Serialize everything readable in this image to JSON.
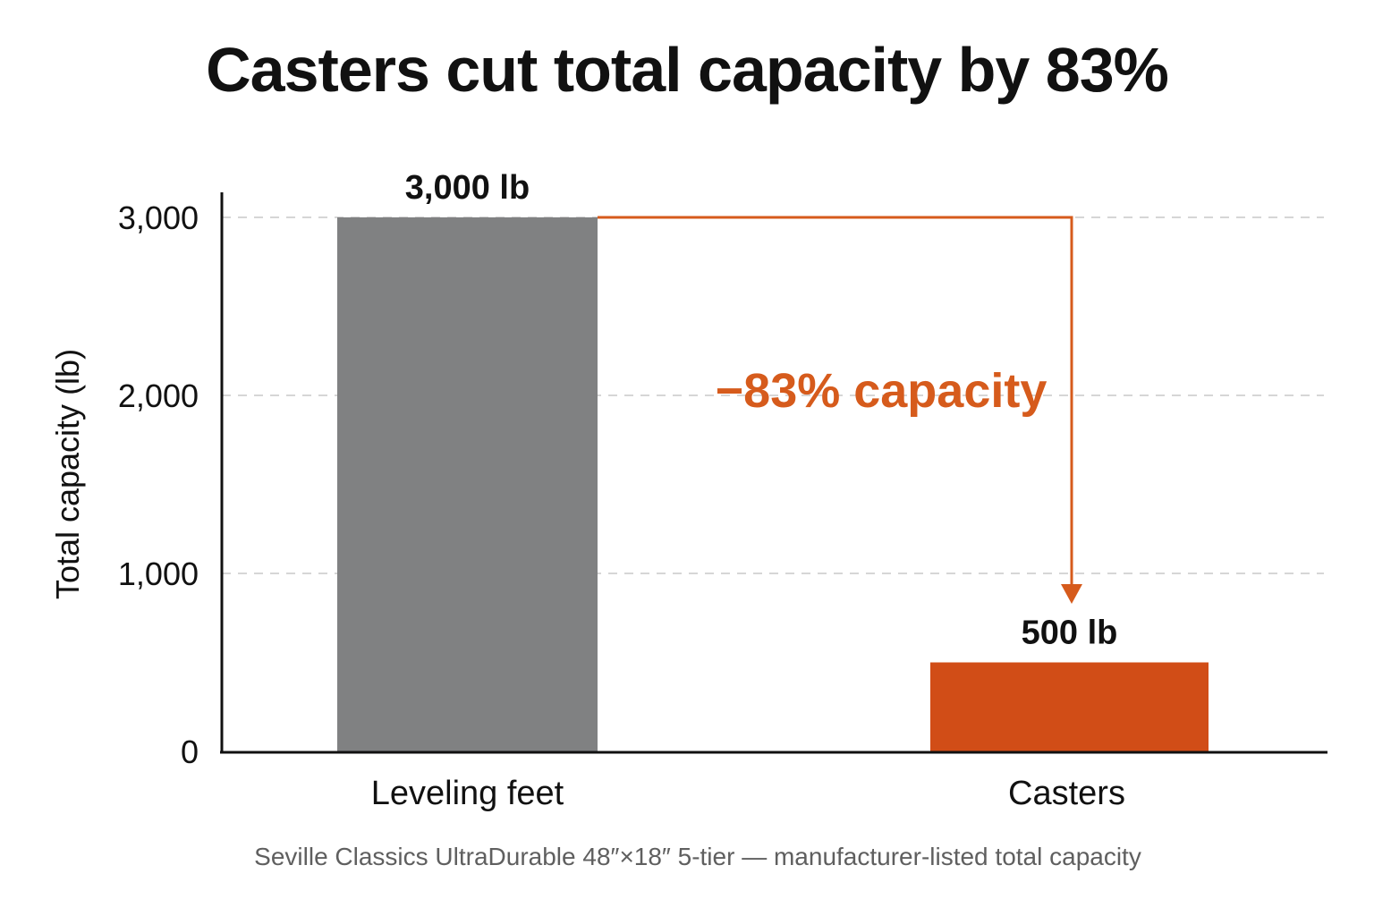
{
  "chart_data": {
    "type": "bar",
    "title": "Casters cut total capacity by 83%",
    "subtitle": "Seville Classics UltraDurable 48″×18″ 5-tier — manufacturer-listed total capacity",
    "categories": [
      "Leveling feet",
      "Casters"
    ],
    "values": [
      3000,
      500
    ],
    "data_labels": [
      "3,000 lb",
      "500 lb"
    ],
    "ylabel": "Total capacity (lb)",
    "xlabel": "",
    "ylim": [
      0,
      3000
    ],
    "yticks": [
      0,
      1000,
      2000,
      3000
    ],
    "ytick_labels": [
      "0",
      "1,000",
      "2,000",
      "3,000"
    ],
    "grid": true,
    "annotation": "−83% capacity",
    "colors": {
      "bars": [
        "#808182",
        "#d14d17"
      ],
      "annotation": "#d65b1c",
      "grid": "#c8c8c8",
      "axis": "#111111"
    }
  }
}
